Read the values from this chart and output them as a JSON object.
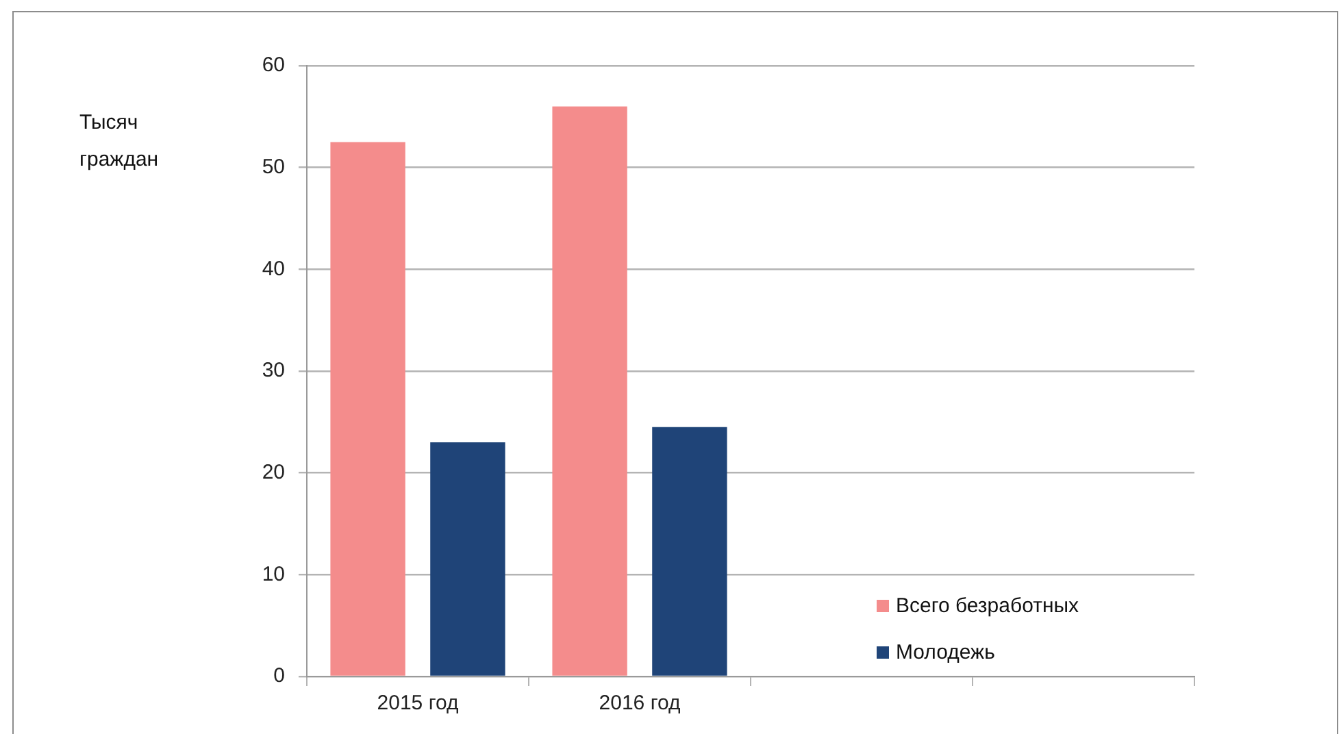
{
  "chart_data": {
    "type": "bar",
    "annotations": [
      "Тысяч граждан"
    ],
    "categories": [
      "2015 год",
      "2016 год",
      null,
      null
    ],
    "series": [
      {
        "name": "Всего безработных",
        "color": "#f48c8c",
        "values": [
          52.5,
          56,
          null,
          null
        ]
      },
      {
        "name": "Молодежь",
        "color": "#1f4478",
        "values": [
          23,
          24.5,
          null,
          null
        ]
      }
    ],
    "ylim": [
      0,
      60
    ],
    "yticks": [
      0,
      10,
      20,
      30,
      40,
      50,
      60
    ],
    "grid": "y",
    "legend": "bottom right"
  }
}
